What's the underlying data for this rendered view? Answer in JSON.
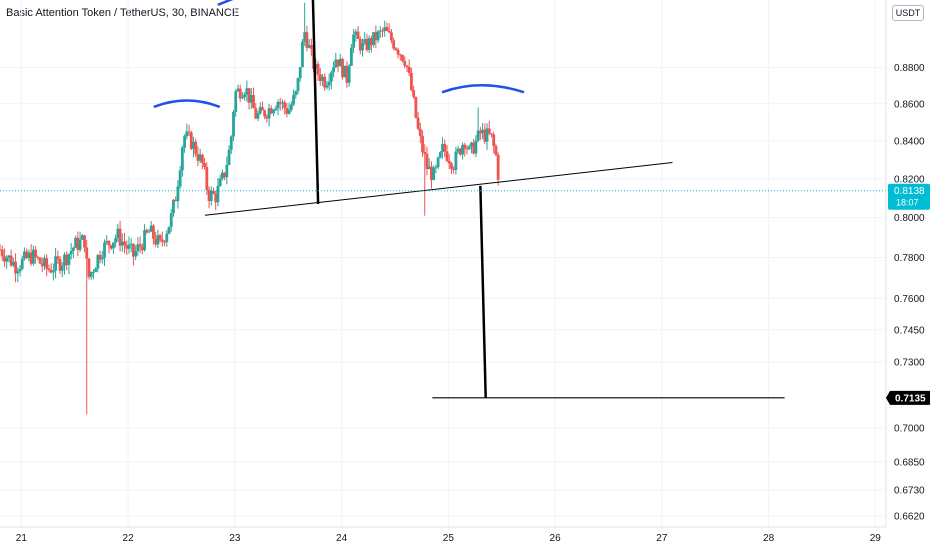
{
  "header": {
    "title": "Basic Attention Token / TetherUS, 30, BINANCE",
    "currency_label": "USDT"
  },
  "colors": {
    "up": "#26a69a",
    "down": "#ef5350",
    "grid": "#f0f3fa",
    "axis_text": "#131722",
    "annotation_blue": "#1e53e5",
    "annotation_black": "#000000",
    "last_price_bg": "#00bcd4",
    "target_bg": "#000000"
  },
  "chart_data": {
    "type": "candlestick",
    "title": "Basic Attention Token / TetherUS, 30, BINANCE",
    "x_unit": "day",
    "xlim": [
      20.8,
      29.1
    ],
    "ylim": [
      0.6573,
      0.9186
    ],
    "y_scale": "log",
    "grid": true,
    "x_tick_labels": [
      "21",
      "22",
      "23",
      "24",
      "25",
      "26",
      "27",
      "28",
      "29"
    ],
    "x_tick_values": [
      21,
      22,
      23,
      24,
      25,
      26,
      27,
      28,
      29
    ],
    "y_tick_labels": [
      "0.8800",
      "0.8600",
      "0.8400",
      "0.8200",
      "0.8000",
      "0.7800",
      "0.7600",
      "0.7450",
      "0.7300",
      "0.7000",
      "0.6850",
      "0.6730",
      "0.6620"
    ],
    "y_tick_values": [
      0.88,
      0.86,
      0.84,
      0.82,
      0.8,
      0.78,
      0.76,
      0.745,
      0.73,
      0.7,
      0.685,
      0.673,
      0.662
    ],
    "last_price": {
      "value": 0.8138,
      "label": "0.8138",
      "countdown": "18:07"
    },
    "target_price": {
      "value": 0.7135,
      "label": "0.7135"
    },
    "pattern_annotations": {
      "neckline": {
        "start": [
          22.72,
          0.8012
        ],
        "end": [
          27.1,
          0.8285
        ]
      },
      "head_measure": {
        "start": [
          23.73,
          0.923
        ],
        "end": [
          23.78,
          0.807
        ]
      },
      "target_measure": {
        "start": [
          25.3,
          0.8163
        ],
        "end": [
          25.35,
          0.7135
        ]
      },
      "target_line": {
        "start": [
          24.85,
          0.7135
        ],
        "end": [
          28.15,
          0.7135
        ]
      },
      "left_shoulder_arc": {
        "start": [
          22.25,
          0.8585
        ],
        "peak": [
          22.55,
          0.8618
        ],
        "end": [
          22.85,
          0.8585
        ]
      },
      "head_arc": {
        "start": [
          22.85,
          0.916
        ],
        "end": [
          23.05,
          0.921
        ]
      },
      "right_shoulder_arc": {
        "start": [
          24.95,
          0.8665
        ],
        "peak": [
          25.3,
          0.8702
        ],
        "end": [
          25.7,
          0.8665
        ]
      }
    },
    "price_path": [
      [
        20.8,
        0.784
      ],
      [
        20.95,
        0.776
      ],
      [
        21.1,
        0.781
      ],
      [
        21.25,
        0.774
      ],
      [
        21.4,
        0.779
      ],
      [
        21.5,
        0.786
      ],
      [
        21.6,
        0.789
      ],
      [
        21.62,
        0.769
      ],
      [
        21.75,
        0.784
      ],
      [
        21.9,
        0.791
      ],
      [
        22.05,
        0.781
      ],
      [
        22.2,
        0.793
      ],
      [
        22.3,
        0.786
      ],
      [
        22.4,
        0.799
      ],
      [
        22.45,
        0.812
      ],
      [
        22.52,
        0.843
      ],
      [
        22.6,
        0.839
      ],
      [
        22.7,
        0.827
      ],
      [
        22.75,
        0.812
      ],
      [
        22.82,
        0.811
      ],
      [
        22.9,
        0.822
      ],
      [
        22.96,
        0.838
      ],
      [
        23.0,
        0.866
      ],
      [
        23.1,
        0.869
      ],
      [
        23.2,
        0.853
      ],
      [
        23.3,
        0.856
      ],
      [
        23.4,
        0.862
      ],
      [
        23.5,
        0.856
      ],
      [
        23.58,
        0.866
      ],
      [
        23.65,
        0.901
      ],
      [
        23.75,
        0.879
      ],
      [
        23.85,
        0.872
      ],
      [
        23.95,
        0.886
      ],
      [
        24.05,
        0.874
      ],
      [
        24.1,
        0.899
      ],
      [
        24.2,
        0.891
      ],
      [
        24.3,
        0.896
      ],
      [
        24.4,
        0.901
      ],
      [
        24.5,
        0.893
      ],
      [
        24.6,
        0.884
      ],
      [
        24.65,
        0.869
      ],
      [
        24.72,
        0.844
      ],
      [
        24.8,
        0.826
      ],
      [
        24.87,
        0.821
      ],
      [
        24.95,
        0.836
      ],
      [
        25.05,
        0.828
      ],
      [
        25.15,
        0.841
      ],
      [
        25.2,
        0.833
      ],
      [
        25.3,
        0.844
      ],
      [
        25.4,
        0.842
      ],
      [
        25.45,
        0.831
      ],
      [
        25.48,
        0.816
      ]
    ],
    "price_extremes": {
      "spike_low": [
        21.62,
        0.706
      ],
      "head_high": [
        23.65,
        0.917
      ],
      "low_near_25": [
        24.78,
        0.801
      ],
      "right_shoulder_high": [
        25.28,
        0.858
      ]
    }
  }
}
